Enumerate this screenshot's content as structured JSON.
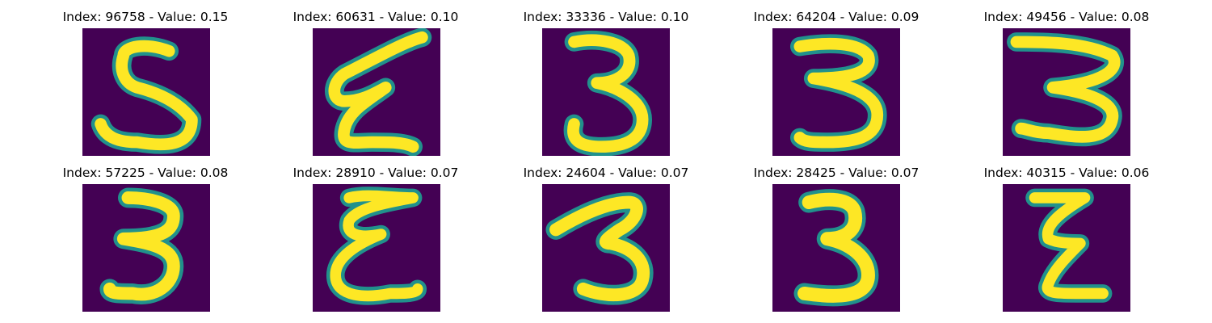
{
  "colors": {
    "background": "#440154",
    "glow": "#21918c",
    "stroke": "#fde725",
    "mid": "#5ec962"
  },
  "panels": [
    {
      "title": "Index: 96758 - Value: 0.15",
      "digit": "5"
    },
    {
      "title": "Index: 60631 - Value: 0.10",
      "digit": "ε-like"
    },
    {
      "title": "Index: 33336 - Value: 0.10",
      "digit": "3"
    },
    {
      "title": "Index: 64204 - Value: 0.09",
      "digit": "3"
    },
    {
      "title": "Index: 49456 - Value: 0.08",
      "digit": "3"
    },
    {
      "title": "Index: 57225 - Value: 0.08",
      "digit": "3"
    },
    {
      "title": "Index: 28910 - Value: 0.07",
      "digit": "ε-like"
    },
    {
      "title": "Index: 24604 - Value: 0.07",
      "digit": "3"
    },
    {
      "title": "Index: 28425 - Value: 0.07",
      "digit": "3"
    },
    {
      "title": "Index: 40315 - Value: 0.06",
      "digit": "z-like"
    }
  ]
}
